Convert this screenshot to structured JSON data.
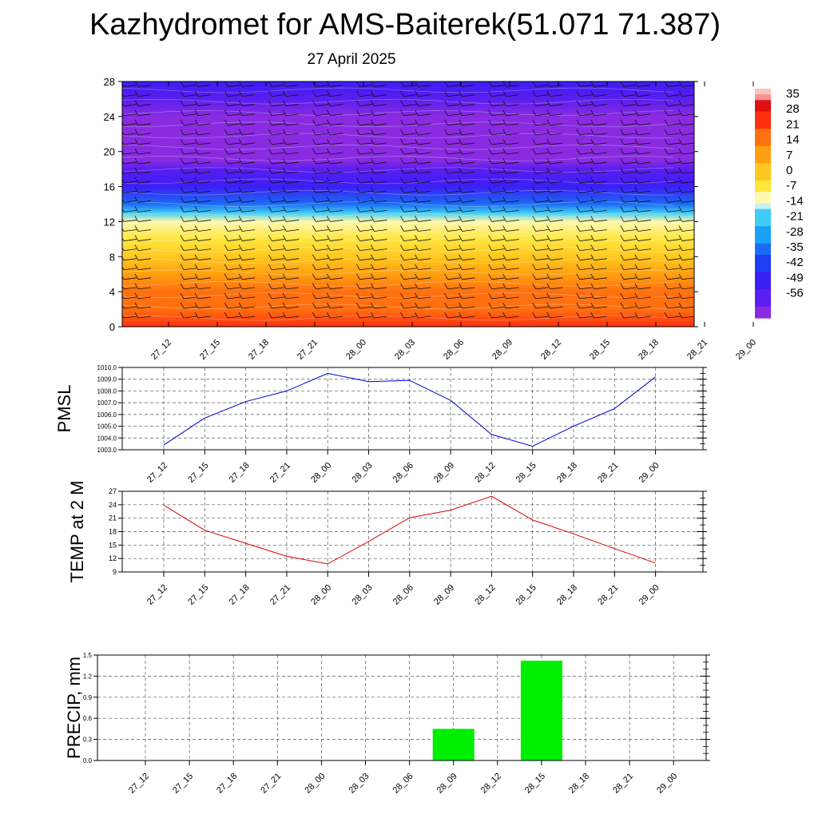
{
  "header": {
    "title": "Kazhydromet for AMS-Baiterek(51.071 71.387)",
    "date": "27 April 2025"
  },
  "time_labels": [
    "27_12",
    "27_15",
    "27_18",
    "27_21",
    "28_00",
    "28_03",
    "28_06",
    "28_09",
    "28_12",
    "28_15",
    "28_18",
    "28_21",
    "29_00"
  ],
  "colors": {
    "pmsl_line": "#0000cc",
    "temp_line": "#dd0000",
    "precip_bar": "#00ee00"
  },
  "chart_data": [
    {
      "type": "heatmap",
      "title": "",
      "x": [
        "27_12",
        "27_15",
        "27_18",
        "27_21",
        "28_00",
        "28_03",
        "28_06",
        "28_09",
        "28_12",
        "28_15",
        "28_18",
        "28_21",
        "29_00"
      ],
      "y_ticks": [
        0,
        4,
        8,
        12,
        16,
        20,
        24,
        28
      ],
      "ylim": [
        0,
        28
      ],
      "colorbar": {
        "ticks": [
          35,
          28,
          21,
          14,
          7,
          0,
          -7,
          -14,
          -21,
          -28,
          -35,
          -42,
          -49,
          -56
        ],
        "range": [
          -63,
          38
        ]
      },
      "profile_levels": [
        0,
        2,
        4,
        6,
        8,
        10,
        12,
        13,
        14,
        16,
        18,
        19,
        20,
        22,
        24,
        26,
        28
      ],
      "profile_values": [
        24,
        20,
        14,
        9,
        4,
        -2,
        -8,
        -18,
        -30,
        -45,
        -52,
        -58,
        -60,
        -58,
        -60,
        -52,
        -47
      ]
    },
    {
      "type": "line",
      "ylabel": "PMSL",
      "x": [
        "27_12",
        "27_15",
        "27_18",
        "27_21",
        "28_00",
        "28_03",
        "28_06",
        "28_09",
        "28_12",
        "28_15",
        "28_18",
        "28_21",
        "29_00"
      ],
      "values": [
        1003.4,
        1005.7,
        1007.1,
        1008.0,
        1009.5,
        1008.8,
        1008.9,
        1007.2,
        1004.3,
        1003.3,
        1005.0,
        1006.5,
        1009.2
      ],
      "y_ticks": [
        "1003.0",
        "1004.0",
        "1005.0",
        "1006.0",
        "1007.0",
        "1008.0",
        "1009.0",
        "1010.0"
      ],
      "ylim": [
        1003.0,
        1010.0
      ],
      "grid": true
    },
    {
      "type": "line",
      "ylabel": "TEMP at 2 M",
      "x": [
        "27_12",
        "27_15",
        "27_18",
        "27_21",
        "28_00",
        "28_03",
        "28_06",
        "28_09",
        "28_12",
        "28_15",
        "28_18",
        "28_21",
        "29_00"
      ],
      "values": [
        23.9,
        18.3,
        15.4,
        12.5,
        10.8,
        15.8,
        21.1,
        22.8,
        25.9,
        20.6,
        17.5,
        14.2,
        11.0
      ],
      "y_ticks": [
        "9",
        "12",
        "15",
        "18",
        "21",
        "24",
        "27"
      ],
      "ylim": [
        9,
        27
      ],
      "grid": true
    },
    {
      "type": "bar",
      "ylabel": "PRECIP, mm",
      "categories": [
        "27_12",
        "27_15",
        "27_18",
        "27_21",
        "28_00",
        "28_03",
        "28_06",
        "28_09",
        "28_12",
        "28_15",
        "28_18",
        "28_21",
        "29_00"
      ],
      "values": [
        0,
        0,
        0,
        0,
        0,
        0,
        0,
        0.45,
        0,
        1.42,
        0,
        0,
        0
      ],
      "y_ticks": [
        "0.0",
        "0.3",
        "0.6",
        "0.9",
        "1.2",
        "1.5"
      ],
      "ylim": [
        0,
        1.5
      ],
      "grid": true
    }
  ]
}
